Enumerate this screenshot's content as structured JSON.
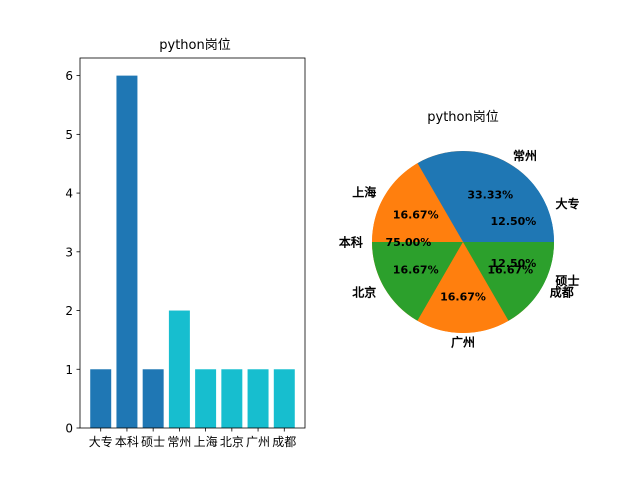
{
  "chart_data": [
    {
      "type": "bar",
      "title": "python岗位",
      "categories": [
        "大专",
        "本科",
        "硕士",
        "常州",
        "上海",
        "北京",
        "广州",
        "成都"
      ],
      "series": [
        {
          "values": [
            1,
            6,
            1,
            null,
            null,
            null,
            null,
            null
          ],
          "color": "#1f77b4"
        },
        {
          "values": [
            null,
            null,
            null,
            2,
            1,
            1,
            1,
            1
          ],
          "color": "#17becf"
        }
      ],
      "ylim": [
        0,
        6.3
      ],
      "yticks": [
        0,
        1,
        2,
        3,
        4,
        5,
        6
      ],
      "grid": false
    },
    {
      "type": "pie",
      "title": "python岗位",
      "layers": [
        {
          "labels": [
            "大专",
            "本科",
            "硕士"
          ],
          "values": [
            1,
            6,
            1
          ],
          "percent_labels": [
            "12.50%",
            "75.00%",
            "12.50%"
          ],
          "colors": [
            "#1f77b4",
            "#ff7f0e",
            "#2ca02c"
          ]
        },
        {
          "labels": [
            "常州",
            "上海",
            "北京",
            "广州",
            "成都"
          ],
          "values": [
            2,
            1,
            1,
            1,
            1
          ],
          "percent_labels": [
            "33.33%",
            "16.67%",
            "16.67%",
            "16.67%",
            "16.67%"
          ],
          "colors": [
            "#1f77b4",
            "#ff7f0e",
            "#2ca02c",
            "#ff7f0e",
            "#2ca02c"
          ]
        }
      ]
    }
  ]
}
